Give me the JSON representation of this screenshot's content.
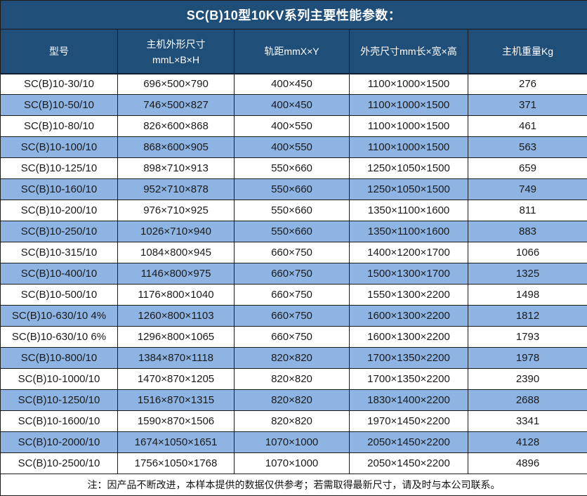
{
  "title": "SC(B)10型10KV系列主要性能参数：",
  "footnote": "注：因产品不断改进，本样本提供的数据仅供参考；若需取得最新尺寸，请及时与本公司联系。",
  "table": {
    "headers": [
      {
        "line1": "型号",
        "line2": ""
      },
      {
        "line1": "主机外形尺寸",
        "line2": "mmL×B×H"
      },
      {
        "line1": "轨距mmX×Y",
        "line2": ""
      },
      {
        "line1": "外壳尺寸mm长×宽×高",
        "line2": ""
      },
      {
        "line1": "主机重量Kg",
        "line2": ""
      }
    ]
  },
  "colors": {
    "header_bg": "#1F4E79",
    "stripe_bg": "#8DB4E2",
    "row_bg": "#FFFFFF",
    "border": "#1B1B1B",
    "header_text": "#FFFFFF",
    "body_text": "#1A1A1A"
  },
  "chart_data": {
    "type": "table",
    "title": "SC(B)10型10KV系列主要性能参数：",
    "columns": [
      "型号",
      "主机外形尺寸 mmL×B×H",
      "轨距mmX×Y",
      "外壳尺寸mm长×宽×高",
      "主机重量Kg"
    ],
    "rows": [
      [
        "SC(B)10-30/10",
        "696×500×790",
        "400×450",
        "1100×1000×1500",
        "276"
      ],
      [
        "SC(B)10-50/10",
        "746×500×827",
        "400×450",
        "1100×1000×1500",
        "371"
      ],
      [
        "SC(B)10-80/10",
        "826×600×868",
        "400×550",
        "1100×1000×1500",
        "461"
      ],
      [
        "SC(B)10-100/10",
        "868×600×905",
        "400×550",
        "1100×1000×1500",
        "563"
      ],
      [
        "SC(B)10-125/10",
        "898×710×913",
        "550×660",
        "1250×1050×1500",
        "659"
      ],
      [
        "SC(B)10-160/10",
        "952×710×878",
        "550×660",
        "1250×1050×1500",
        "749"
      ],
      [
        "SC(B)10-200/10",
        "976×710×925",
        "550×660",
        "1350×1100×1600",
        "811"
      ],
      [
        "SC(B)10-250/10",
        "1026×710×940",
        "550×660",
        "1350×1100×1600",
        "883"
      ],
      [
        "SC(B)10-315/10",
        "1084×800×945",
        "660×750",
        "1400×1200×1700",
        "1066"
      ],
      [
        "SC(B)10-400/10",
        "1146×800×975",
        "660×750",
        "1500×1300×1700",
        "1325"
      ],
      [
        "SC(B)10-500/10",
        "1176×800×1040",
        "660×750",
        "1550×1300×2200",
        "1498"
      ],
      [
        "SC(B)10-630/10 4%",
        "1260×800×1103",
        "660×750",
        "1600×1300×2200",
        "1812"
      ],
      [
        "SC(B)10-630/10 6%",
        "1296×800×1065",
        "660×750",
        "1600×1300×2200",
        "1793"
      ],
      [
        "SC(B)10-800/10",
        "1384×870×1118",
        "820×820",
        "1700×1350×2200",
        "1978"
      ],
      [
        "SC(B)10-1000/10",
        "1470×870×1205",
        "820×820",
        "1700×1350×2200",
        "2390"
      ],
      [
        "SC(B)10-1250/10",
        "1516×870×1315",
        "820×820",
        "1830×1400×2200",
        "2688"
      ],
      [
        "SC(B)10-1600/10",
        "1590×870×1506",
        "820×820",
        "1970×1450×2200",
        "3341"
      ],
      [
        "SC(B)10-2000/10",
        "1674×1050×1651",
        "1070×1000",
        "2050×1450×2200",
        "4128"
      ],
      [
        "SC(B)10-2500/10",
        "1756×1050×1768",
        "1070×1000",
        "2050×1450×2200",
        "4896"
      ]
    ]
  }
}
